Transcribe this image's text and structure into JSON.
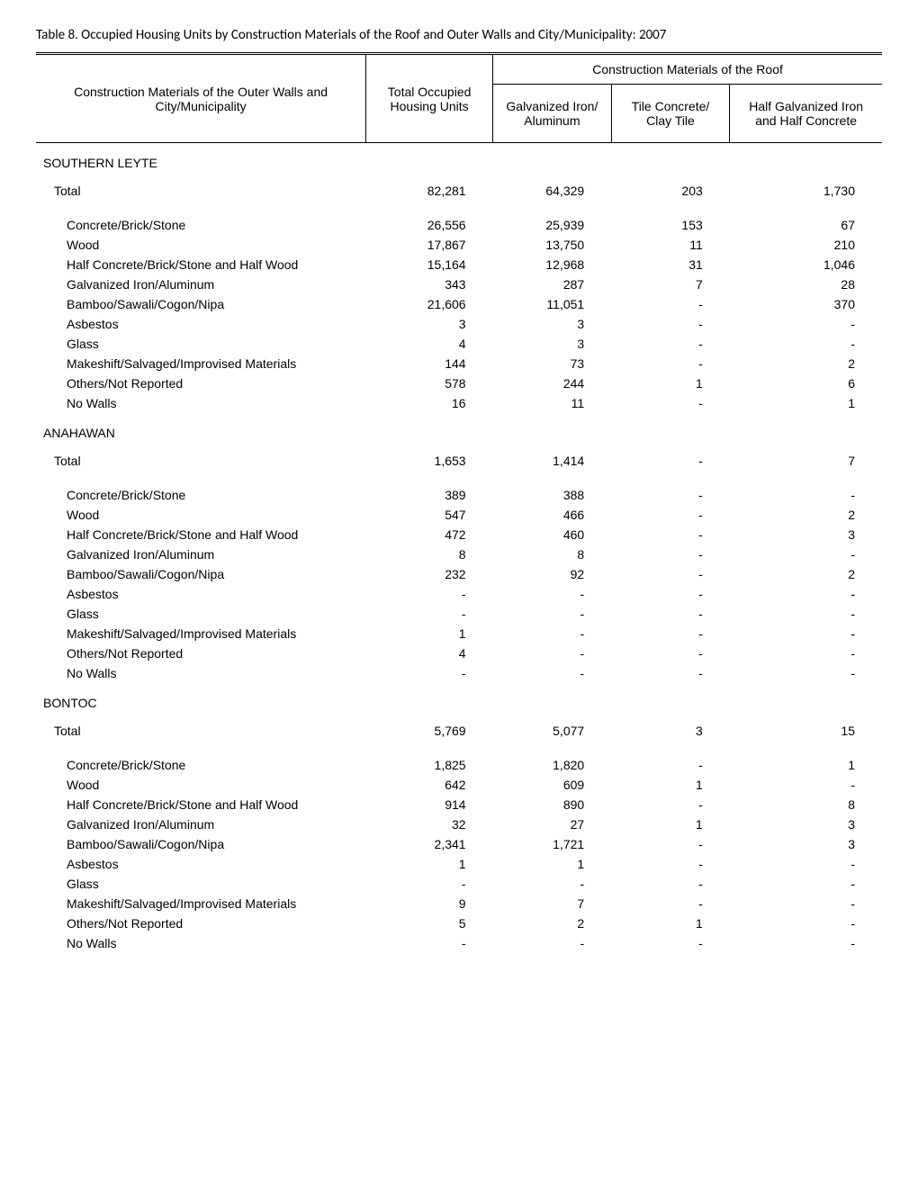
{
  "title": "Table 8. Occupied Housing Units by Construction Materials of the Roof and Outer Walls and City/Municipality: 2007",
  "columns": {
    "c0": "Construction Materials of the Outer Walls and City/Municipality",
    "c1": "Total Occupied Housing Units",
    "group_header": "Construction Materials of the Roof",
    "c2": "Galvanized Iron/ Aluminum",
    "c3": "Tile Concrete/ Clay Tile",
    "c4": "Half Galvanized Iron and Half Concrete"
  },
  "sections": [
    {
      "name": "SOUTHERN LEYTE",
      "total": {
        "label": "Total",
        "v": [
          "82,281",
          "64,329",
          "203",
          "1,730"
        ]
      },
      "rows": [
        {
          "label": "Concrete/Brick/Stone",
          "v": [
            "26,556",
            "25,939",
            "153",
            "67"
          ]
        },
        {
          "label": "Wood",
          "v": [
            "17,867",
            "13,750",
            "11",
            "210"
          ]
        },
        {
          "label": "Half Concrete/Brick/Stone and Half Wood",
          "v": [
            "15,164",
            "12,968",
            "31",
            "1,046"
          ]
        },
        {
          "label": "Galvanized Iron/Aluminum",
          "v": [
            "343",
            "287",
            "7",
            "28"
          ]
        },
        {
          "label": "Bamboo/Sawali/Cogon/Nipa",
          "v": [
            "21,606",
            "11,051",
            "-",
            "370"
          ]
        },
        {
          "label": "Asbestos",
          "v": [
            "3",
            "3",
            "-",
            "-"
          ]
        },
        {
          "label": "Glass",
          "v": [
            "4",
            "3",
            "-",
            "-"
          ]
        },
        {
          "label": "Makeshift/Salvaged/Improvised Materials",
          "v": [
            "144",
            "73",
            "-",
            "2"
          ]
        },
        {
          "label": "Others/Not Reported",
          "v": [
            "578",
            "244",
            "1",
            "6"
          ]
        },
        {
          "label": "No Walls",
          "v": [
            "16",
            "11",
            "-",
            "1"
          ]
        }
      ]
    },
    {
      "name": "ANAHAWAN",
      "total": {
        "label": "Total",
        "v": [
          "1,653",
          "1,414",
          "-",
          "7"
        ]
      },
      "rows": [
        {
          "label": "Concrete/Brick/Stone",
          "v": [
            "389",
            "388",
            "-",
            "-"
          ]
        },
        {
          "label": "Wood",
          "v": [
            "547",
            "466",
            "-",
            "2"
          ]
        },
        {
          "label": "Half Concrete/Brick/Stone and Half Wood",
          "v": [
            "472",
            "460",
            "-",
            "3"
          ]
        },
        {
          "label": "Galvanized Iron/Aluminum",
          "v": [
            "8",
            "8",
            "-",
            "-"
          ]
        },
        {
          "label": "Bamboo/Sawali/Cogon/Nipa",
          "v": [
            "232",
            "92",
            "-",
            "2"
          ]
        },
        {
          "label": "Asbestos",
          "v": [
            "-",
            "-",
            "-",
            "-"
          ]
        },
        {
          "label": "Glass",
          "v": [
            "-",
            "-",
            "-",
            "-"
          ]
        },
        {
          "label": "Makeshift/Salvaged/Improvised Materials",
          "v": [
            "1",
            "-",
            "-",
            "-"
          ]
        },
        {
          "label": "Others/Not Reported",
          "v": [
            "4",
            "-",
            "-",
            "-"
          ]
        },
        {
          "label": "No Walls",
          "v": [
            "-",
            "-",
            "-",
            "-"
          ]
        }
      ]
    },
    {
      "name": "BONTOC",
      "total": {
        "label": "Total",
        "v": [
          "5,769",
          "5,077",
          "3",
          "15"
        ]
      },
      "rows": [
        {
          "label": "Concrete/Brick/Stone",
          "v": [
            "1,825",
            "1,820",
            "-",
            "1"
          ]
        },
        {
          "label": "Wood",
          "v": [
            "642",
            "609",
            "1",
            "-"
          ]
        },
        {
          "label": "Half Concrete/Brick/Stone and Half Wood",
          "v": [
            "914",
            "890",
            "-",
            "8"
          ]
        },
        {
          "label": "Galvanized Iron/Aluminum",
          "v": [
            "32",
            "27",
            "1",
            "3"
          ]
        },
        {
          "label": "Bamboo/Sawali/Cogon/Nipa",
          "v": [
            "2,341",
            "1,721",
            "-",
            "3"
          ]
        },
        {
          "label": "Asbestos",
          "v": [
            "1",
            "1",
            "-",
            "-"
          ]
        },
        {
          "label": "Glass",
          "v": [
            "-",
            "-",
            "-",
            "-"
          ]
        },
        {
          "label": "Makeshift/Salvaged/Improvised Materials",
          "v": [
            "9",
            "7",
            "-",
            "-"
          ]
        },
        {
          "label": "Others/Not Reported",
          "v": [
            "5",
            "2",
            "1",
            "-"
          ]
        },
        {
          "label": "No Walls",
          "v": [
            "-",
            "-",
            "-",
            "-"
          ]
        }
      ]
    }
  ]
}
